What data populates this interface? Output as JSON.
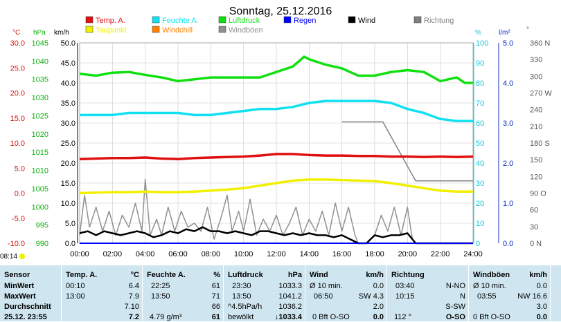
{
  "title": "Sonntag, 25.12.2016",
  "colors": {
    "temp": "#e01010",
    "feuchte": "#10e0f0",
    "luftdruck": "#10e010",
    "regen": "#0000ff",
    "wind": "#000000",
    "richtung": "#808080",
    "taupunkt": "#f0f000",
    "windchill": "#ff8000",
    "windboeen": "#909090"
  },
  "legend": [
    {
      "label": "Temp. A.",
      "color": "#e01010"
    },
    {
      "label": "Feuchte A.",
      "color": "#10e0f0"
    },
    {
      "label": "Luftdruck",
      "color": "#10e010"
    },
    {
      "label": "Regen",
      "color": "#0000ff"
    },
    {
      "label": "Wind",
      "color": "#000000"
    },
    {
      "label": "Richtung",
      "color": "#808080"
    },
    {
      "label": "Taupunkt",
      "color": "#f0f000"
    },
    {
      "label": "Windchill",
      "color": "#ff8000"
    },
    {
      "label": "Windböen",
      "color": "#909090"
    }
  ],
  "units": {
    "temp": "°C",
    "hpa": "hPa",
    "kmh": "km/h",
    "pct": "%",
    "rain": "l/m²",
    "deg": "°"
  },
  "sunrise_label": "08:14",
  "chart_data": {
    "type": "line",
    "x_ticks": [
      "00:00",
      "02:00",
      "04:00",
      "06:00",
      "08:00",
      "10:00",
      "12:00",
      "14:00",
      "16:00",
      "18:00",
      "20:00",
      "22:00",
      "24:00"
    ],
    "axes": {
      "temp": {
        "min": -10,
        "max": 30,
        "ticks": [
          "30.0",
          "25.0",
          "20.0",
          "15.0",
          "10.0",
          "5.0",
          "0.0",
          "-5.0",
          "-10.0"
        ]
      },
      "hpa": {
        "min": 990,
        "max": 1045,
        "ticks": [
          "1045",
          "1040",
          "1035",
          "1030",
          "1025",
          "1020",
          "1015",
          "1010",
          "1005",
          "1000",
          "995",
          "990"
        ]
      },
      "kmh": {
        "min": 0,
        "max": 50,
        "ticks": [
          "50.0",
          "45.0",
          "40.0",
          "35.0",
          "30.0",
          "25.0",
          "20.0",
          "15.0",
          "10.0",
          "5.0",
          "0.0"
        ]
      },
      "pct": {
        "min": 0,
        "max": 100,
        "ticks": [
          "100",
          "90",
          "80",
          "70",
          "60",
          "50",
          "40",
          "30",
          "20",
          "10",
          "0"
        ]
      },
      "rain": {
        "min": 0,
        "max": 5,
        "ticks": [
          "5.0",
          "4.0",
          "3.0",
          "2.0",
          "1.0",
          "0.0"
        ]
      },
      "deg": {
        "min": 0,
        "max": 360,
        "ticks": [
          "360 N",
          "330",
          "300",
          "270 W",
          "240",
          "210",
          "180 S",
          "150",
          "120",
          "90 O",
          "60",
          "30",
          "0 N"
        ]
      }
    },
    "series": [
      {
        "name": "Temp. A.",
        "axis": "temp",
        "color": "#e01010",
        "points": [
          [
            0,
            6.8
          ],
          [
            1,
            6.9
          ],
          [
            2,
            7.0
          ],
          [
            3,
            7.0
          ],
          [
            4,
            7.1
          ],
          [
            5,
            6.9
          ],
          [
            6,
            6.8
          ],
          [
            7,
            7.0
          ],
          [
            8,
            7.1
          ],
          [
            9,
            7.2
          ],
          [
            10,
            7.3
          ],
          [
            11,
            7.5
          ],
          [
            12,
            7.8
          ],
          [
            13,
            7.8
          ],
          [
            14,
            7.6
          ],
          [
            15,
            7.5
          ],
          [
            16,
            7.5
          ],
          [
            17,
            7.4
          ],
          [
            18,
            7.4
          ],
          [
            19,
            7.3
          ],
          [
            20,
            7.3
          ],
          [
            21,
            7.2
          ],
          [
            22,
            7.3
          ],
          [
            23,
            7.2
          ],
          [
            24,
            7.3
          ]
        ]
      },
      {
        "name": "Feuchte A.",
        "axis": "pct",
        "color": "#10e0f0",
        "points": [
          [
            0,
            64
          ],
          [
            1,
            64
          ],
          [
            2,
            64
          ],
          [
            3,
            65
          ],
          [
            4,
            65
          ],
          [
            5,
            65
          ],
          [
            6,
            65
          ],
          [
            7,
            64
          ],
          [
            8,
            64
          ],
          [
            9,
            65
          ],
          [
            10,
            66
          ],
          [
            11,
            67
          ],
          [
            12,
            67
          ],
          [
            13,
            68
          ],
          [
            14,
            70
          ],
          [
            15,
            71
          ],
          [
            16,
            71
          ],
          [
            17,
            71
          ],
          [
            18,
            71
          ],
          [
            19,
            70
          ],
          [
            20,
            67
          ],
          [
            21,
            65
          ],
          [
            22,
            62
          ],
          [
            23,
            61
          ],
          [
            24,
            61
          ]
        ]
      },
      {
        "name": "Luftdruck",
        "axis": "hpa",
        "color": "#10e010",
        "points": [
          [
            0,
            1036.5
          ],
          [
            1,
            1036.0
          ],
          [
            2,
            1036.8
          ],
          [
            3,
            1037.0
          ],
          [
            4,
            1036.2
          ],
          [
            5,
            1035.5
          ],
          [
            6,
            1034.5
          ],
          [
            7,
            1035.0
          ],
          [
            8,
            1035.5
          ],
          [
            9,
            1035.5
          ],
          [
            10,
            1035.5
          ],
          [
            11,
            1035.5
          ],
          [
            12,
            1037.0
          ],
          [
            13,
            1038.5
          ],
          [
            13.7,
            1041.2
          ],
          [
            14,
            1040.5
          ],
          [
            15,
            1039.0
          ],
          [
            16,
            1038.0
          ],
          [
            17,
            1036.0
          ],
          [
            18,
            1036.0
          ],
          [
            19,
            1037.0
          ],
          [
            20,
            1037.5
          ],
          [
            21,
            1037.0
          ],
          [
            22,
            1034.5
          ],
          [
            23,
            1035.5
          ],
          [
            23.5,
            1034.0
          ],
          [
            24,
            1034.0
          ]
        ]
      },
      {
        "name": "Taupunkt",
        "axis": "temp",
        "color": "#f0f000",
        "points": [
          [
            0,
            0.0
          ],
          [
            1,
            0.1
          ],
          [
            2,
            0.2
          ],
          [
            3,
            0.2
          ],
          [
            4,
            0.3
          ],
          [
            5,
            0.2
          ],
          [
            6,
            0.2
          ],
          [
            7,
            0.3
          ],
          [
            8,
            0.5
          ],
          [
            9,
            0.7
          ],
          [
            10,
            1.0
          ],
          [
            11,
            1.5
          ],
          [
            12,
            2.0
          ],
          [
            13,
            2.5
          ],
          [
            14,
            2.7
          ],
          [
            15,
            2.7
          ],
          [
            16,
            2.6
          ],
          [
            17,
            2.5
          ],
          [
            18,
            2.4
          ],
          [
            19,
            2.0
          ],
          [
            20,
            1.5
          ],
          [
            21,
            1.0
          ],
          [
            22,
            0.5
          ],
          [
            23,
            0.3
          ],
          [
            24,
            0.3
          ]
        ]
      },
      {
        "name": "Wind",
        "axis": "kmh",
        "color": "#000000",
        "points": [
          [
            0,
            2.5
          ],
          [
            0.5,
            3.0
          ],
          [
            1,
            2.0
          ],
          [
            1.5,
            3.0
          ],
          [
            2,
            2.5
          ],
          [
            2.5,
            2.0
          ],
          [
            3,
            2.5
          ],
          [
            3.5,
            3.0
          ],
          [
            4,
            2.5
          ],
          [
            4.5,
            1.5
          ],
          [
            5,
            2.0
          ],
          [
            5.5,
            3.0
          ],
          [
            6,
            2.5
          ],
          [
            6.5,
            3.5
          ],
          [
            7,
            3.0
          ],
          [
            7.5,
            4.0
          ],
          [
            8,
            3.0
          ],
          [
            8.5,
            3.0
          ],
          [
            9,
            2.5
          ],
          [
            9.5,
            3.0
          ],
          [
            10,
            2.5
          ],
          [
            10.5,
            2.0
          ],
          [
            11,
            3.0
          ],
          [
            11.5,
            3.0
          ],
          [
            12,
            2.5
          ],
          [
            12.5,
            2.0
          ],
          [
            13,
            2.5
          ],
          [
            13.5,
            2.0
          ],
          [
            14,
            2.5
          ],
          [
            14.5,
            2.0
          ],
          [
            15,
            2.0
          ],
          [
            15.5,
            1.5
          ],
          [
            16,
            2.0
          ],
          [
            16.5,
            1.0
          ],
          [
            17,
            0
          ],
          [
            17.5,
            0
          ],
          [
            18,
            2.0
          ],
          [
            18.5,
            1.5
          ],
          [
            19,
            2.0
          ],
          [
            19.5,
            2.0
          ],
          [
            20,
            2.5
          ],
          [
            20.5,
            0
          ],
          [
            21,
            0
          ],
          [
            24,
            0
          ]
        ]
      },
      {
        "name": "Windböen",
        "axis": "kmh",
        "color": "#909090",
        "points": [
          [
            0,
            2
          ],
          [
            0.3,
            12
          ],
          [
            0.6,
            4
          ],
          [
            1,
            9
          ],
          [
            1.4,
            3
          ],
          [
            1.8,
            8
          ],
          [
            2.2,
            2
          ],
          [
            2.6,
            7
          ],
          [
            3,
            4
          ],
          [
            3.4,
            10
          ],
          [
            3.8,
            3
          ],
          [
            4,
            16
          ],
          [
            4.3,
            2
          ],
          [
            4.7,
            6
          ],
          [
            5,
            2
          ],
          [
            5.4,
            9
          ],
          [
            5.8,
            3
          ],
          [
            6.2,
            8
          ],
          [
            6.6,
            4
          ],
          [
            7,
            5
          ],
          [
            7.4,
            3
          ],
          [
            7.8,
            9
          ],
          [
            8.2,
            1
          ],
          [
            8.6,
            6
          ],
          [
            9,
            12
          ],
          [
            9.3,
            3
          ],
          [
            9.7,
            8
          ],
          [
            10,
            3
          ],
          [
            10.4,
            11
          ],
          [
            10.8,
            2
          ],
          [
            11.2,
            6
          ],
          [
            11.6,
            3
          ],
          [
            12,
            7
          ],
          [
            12.4,
            2
          ],
          [
            12.8,
            5
          ],
          [
            13.2,
            9
          ],
          [
            13.6,
            2
          ],
          [
            14,
            6
          ],
          [
            14.4,
            3
          ],
          [
            14.8,
            8
          ],
          [
            15.2,
            2
          ],
          [
            15.6,
            10
          ],
          [
            16,
            3
          ],
          [
            16.4,
            9
          ],
          [
            16.8,
            2
          ],
          [
            17,
            0
          ],
          [
            17.5,
            0
          ],
          [
            18,
            2
          ],
          [
            18.4,
            7
          ],
          [
            18.8,
            3
          ],
          [
            19.2,
            9
          ],
          [
            19.6,
            2
          ],
          [
            20,
            9
          ],
          [
            20.3,
            1
          ],
          [
            20.5,
            0
          ],
          [
            24,
            0
          ]
        ]
      },
      {
        "name": "Richtung",
        "axis": "deg",
        "color": "#808080",
        "points": [
          [
            16,
            218
          ],
          [
            18.5,
            218
          ],
          [
            20.5,
            112
          ],
          [
            24,
            112
          ]
        ]
      }
    ]
  },
  "table": {
    "headers": {
      "sensor": "Sensor",
      "temp": "Temp. A.",
      "temp_unit": "°C",
      "feuchte": "Feuchte A.",
      "feuchte_unit": "%",
      "luft": "Luftdruck",
      "luft_unit": "hPa",
      "wind": "Wind",
      "wind_unit": "km/h",
      "richtung": "Richtung",
      "boeen": "Windböen",
      "boeen_unit": "km/h"
    },
    "rows": [
      {
        "label": "MinWert",
        "t_time": "00:10",
        "t_val": "6.4",
        "f_time": "22:25",
        "f_val": "61",
        "l_time": "23:30",
        "l_val": "1033.3",
        "w_time": "Ø 10 min.",
        "w_val": "0.0",
        "r_time": "03:40",
        "r_val": "N-NO",
        "b_time": "Ø 10 min.",
        "b_val": "0.0"
      },
      {
        "label": "MaxWert",
        "t_time": "13:00",
        "t_val": "7.9",
        "f_time": "13:50",
        "f_val": "71",
        "l_time": "13:50",
        "l_val": "1041.2",
        "w_time": "06:50",
        "w_val": "SW 4.3",
        "r_time": "10:15",
        "r_val": "N",
        "b_time": "03:55",
        "b_val": "NW 16.6"
      },
      {
        "label": "Durchschnitt",
        "t_time": "",
        "t_val": "7.10",
        "f_time": "",
        "f_val": "66",
        "l_time": "^4.5hPa/h",
        "l_val": "1036.2",
        "w_time": "",
        "w_val": "2.0",
        "r_time": "",
        "r_val": "S-SW",
        "b_time": "",
        "b_val": "3.0"
      },
      {
        "label": "25.12. 23:55",
        "t_time": "",
        "t_val": "7.2",
        "f_time": "4.79 g/m³",
        "f_val": "61",
        "l_time": "bewölkt",
        "l_val": "↓1033.4",
        "w_time": "0 Bft O-SO",
        "w_val": "0.0",
        "r_time": "112 °",
        "r_val": "O-SO",
        "b_time": "0 Bft O-SO",
        "b_val": "0.0"
      }
    ]
  }
}
